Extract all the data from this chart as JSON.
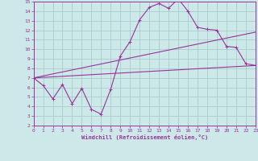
{
  "xlabel": "Windchill (Refroidissement éolien,°C)",
  "bg_color": "#cce8e8",
  "line_color": "#993399",
  "grid_color": "#aacccc",
  "ylim": [
    2,
    15
  ],
  "xlim": [
    0,
    23
  ],
  "yticks": [
    2,
    3,
    4,
    5,
    6,
    7,
    8,
    9,
    10,
    11,
    12,
    13,
    14,
    15
  ],
  "xticks": [
    0,
    1,
    2,
    3,
    4,
    5,
    6,
    7,
    8,
    9,
    10,
    11,
    12,
    13,
    14,
    15,
    16,
    17,
    18,
    19,
    20,
    21,
    22,
    23
  ],
  "line1_x": [
    0,
    1,
    2,
    3,
    4,
    5,
    6,
    7,
    8,
    9,
    10,
    11,
    12,
    13,
    14,
    15,
    16,
    17,
    18,
    19,
    20,
    21,
    22,
    23
  ],
  "line1_y": [
    7.0,
    6.2,
    4.8,
    6.3,
    4.3,
    5.9,
    3.7,
    3.2,
    5.8,
    9.3,
    10.8,
    13.1,
    14.4,
    14.8,
    14.3,
    15.3,
    14.0,
    12.3,
    12.1,
    12.0,
    10.3,
    10.2,
    8.5,
    8.3
  ],
  "line2_x": [
    0,
    23
  ],
  "line2_y": [
    7.0,
    8.3
  ],
  "line3_x": [
    0,
    23
  ],
  "line3_y": [
    7.0,
    11.8
  ]
}
